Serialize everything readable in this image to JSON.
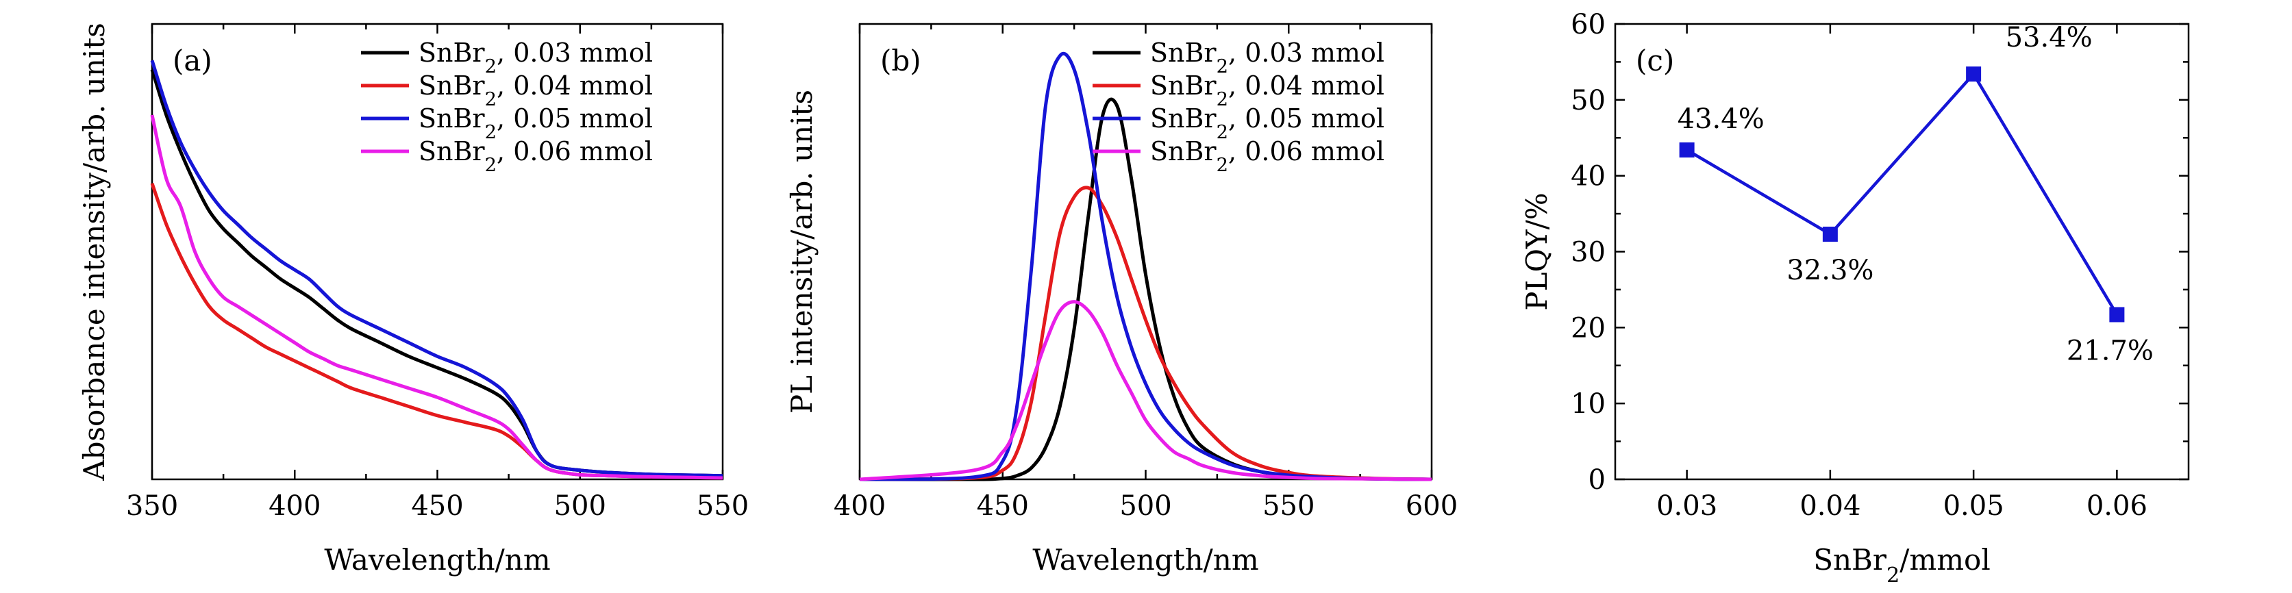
{
  "chart_data": [
    {
      "type": "line",
      "panel_label": "(a)",
      "xlabel": "Wavelength/nm",
      "ylabel": "Absorbance intensity/arb. units",
      "xlim": [
        350,
        550
      ],
      "ylim": [
        0,
        1
      ],
      "xticks": [
        "350",
        "400",
        "450",
        "500",
        "550"
      ],
      "legend": "top-right",
      "x": [
        350,
        355,
        360,
        365,
        370,
        375,
        380,
        385,
        390,
        395,
        400,
        405,
        410,
        415,
        420,
        430,
        440,
        450,
        460,
        470,
        475,
        480,
        485,
        490,
        500,
        510,
        520,
        530,
        540,
        550
      ],
      "series": [
        {
          "name": "SnBr₂, 0.03 mmol",
          "color": "#000000",
          "values": [
            0.9,
            0.8,
            0.72,
            0.65,
            0.59,
            0.55,
            0.52,
            0.49,
            0.465,
            0.44,
            0.42,
            0.4,
            0.375,
            0.35,
            0.33,
            0.3,
            0.27,
            0.245,
            0.22,
            0.19,
            0.165,
            0.12,
            0.06,
            0.03,
            0.02,
            0.015,
            0.012,
            0.01,
            0.009,
            0.008
          ]
        },
        {
          "name": "SnBr₂, 0.04 mmol",
          "color": "#e41a1c",
          "values": [
            0.65,
            0.56,
            0.49,
            0.43,
            0.38,
            0.35,
            0.33,
            0.31,
            0.29,
            0.275,
            0.26,
            0.245,
            0.23,
            0.215,
            0.2,
            0.18,
            0.16,
            0.14,
            0.125,
            0.11,
            0.095,
            0.07,
            0.04,
            0.02,
            0.01,
            0.008,
            0.006,
            0.005,
            0.004,
            0.003
          ]
        },
        {
          "name": "SnBr₂, 0.05 mmol",
          "color": "#1515d6",
          "values": [
            0.92,
            0.82,
            0.74,
            0.68,
            0.63,
            0.59,
            0.56,
            0.53,
            0.505,
            0.48,
            0.46,
            0.44,
            0.41,
            0.38,
            0.36,
            0.33,
            0.3,
            0.27,
            0.245,
            0.21,
            0.18,
            0.13,
            0.06,
            0.03,
            0.02,
            0.015,
            0.012,
            0.01,
            0.009,
            0.008
          ]
        },
        {
          "name": "SnBr₂, 0.06 mmol",
          "color": "#e81ee8",
          "values": [
            0.8,
            0.66,
            0.6,
            0.5,
            0.44,
            0.4,
            0.38,
            0.36,
            0.34,
            0.32,
            0.3,
            0.28,
            0.265,
            0.25,
            0.24,
            0.22,
            0.2,
            0.18,
            0.155,
            0.13,
            0.11,
            0.075,
            0.04,
            0.02,
            0.01,
            0.008,
            0.006,
            0.005,
            0.004,
            0.003
          ]
        }
      ]
    },
    {
      "type": "line",
      "panel_label": "(b)",
      "xlabel": "Wavelength/nm",
      "ylabel": "PL intensity/arb. units",
      "xlim": [
        400,
        600
      ],
      "ylim": [
        0,
        1
      ],
      "xticks": [
        "400",
        "450",
        "500",
        "550",
        "600"
      ],
      "legend": "top-right",
      "x": [
        400,
        440,
        450,
        455,
        460,
        465,
        470,
        475,
        480,
        485,
        490,
        495,
        500,
        505,
        510,
        515,
        520,
        530,
        540,
        550,
        560,
        580,
        600
      ],
      "series": [
        {
          "name": "SnBr₂, 0.03 mmol",
          "color": "#000000",
          "values": [
            0,
            0,
            0.002,
            0.008,
            0.025,
            0.07,
            0.16,
            0.33,
            0.58,
            0.8,
            0.82,
            0.66,
            0.45,
            0.29,
            0.18,
            0.11,
            0.07,
            0.035,
            0.017,
            0.008,
            0.004,
            0.001,
            0
          ]
        },
        {
          "name": "SnBr₂, 0.04 mmol",
          "color": "#e41a1c",
          "values": [
            0,
            0.003,
            0.02,
            0.06,
            0.17,
            0.36,
            0.54,
            0.62,
            0.64,
            0.6,
            0.53,
            0.44,
            0.35,
            0.27,
            0.21,
            0.16,
            0.12,
            0.06,
            0.03,
            0.015,
            0.007,
            0.002,
            0
          ]
        },
        {
          "name": "SnBr₂, 0.05 mmol",
          "color": "#1515d6",
          "values": [
            0,
            0.005,
            0.04,
            0.16,
            0.46,
            0.82,
            0.93,
            0.9,
            0.76,
            0.56,
            0.4,
            0.29,
            0.21,
            0.15,
            0.11,
            0.08,
            0.06,
            0.032,
            0.017,
            0.009,
            0.005,
            0.001,
            0
          ]
        },
        {
          "name": "SnBr₂, 0.06 mmol",
          "color": "#e81ee8",
          "values": [
            0,
            0.02,
            0.06,
            0.12,
            0.21,
            0.3,
            0.37,
            0.39,
            0.37,
            0.32,
            0.25,
            0.19,
            0.13,
            0.09,
            0.06,
            0.045,
            0.03,
            0.015,
            0.008,
            0.004,
            0.002,
            0.001,
            0
          ]
        }
      ]
    },
    {
      "type": "line",
      "panel_label": "(c)",
      "xlabel": "SnBr₂/mmol",
      "ylabel": "PLQY/%",
      "xlim": [
        0.025,
        0.065
      ],
      "ylim": [
        0,
        60
      ],
      "xticks": [
        "0.03",
        "0.04",
        "0.05",
        "0.06"
      ],
      "yticks": [
        "0",
        "10",
        "20",
        "30",
        "40",
        "50",
        "60"
      ],
      "x": [
        0.03,
        0.04,
        0.05,
        0.06
      ],
      "series": [
        {
          "name": "",
          "color": "#1515d6",
          "values": [
            43.4,
            32.3,
            53.4,
            21.7
          ]
        }
      ],
      "data_labels": [
        "43.4%",
        "32.3%",
        "53.4%",
        "21.7%"
      ]
    }
  ]
}
